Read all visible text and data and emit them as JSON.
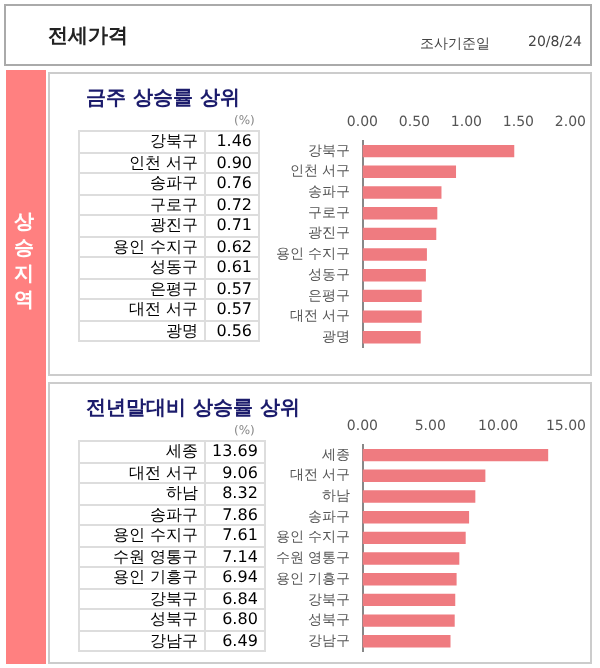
{
  "chart_data": [
    {
      "type": "bar",
      "orientation": "horizontal",
      "title": "금주 상승률 상위",
      "annotations": [
        "전세가격",
        "조사기준일",
        "20/8/24",
        "상승지역",
        "(%)"
      ],
      "categories": [
        "강북구",
        "인천 서구",
        "송파구",
        "구로구",
        "광진구",
        "용인 수지구",
        "성동구",
        "은평구",
        "대전 서구",
        "광명"
      ],
      "values": [
        1.46,
        0.9,
        0.76,
        0.72,
        0.71,
        0.62,
        0.61,
        0.57,
        0.57,
        0.56
      ],
      "value_labels": [
        "1.46",
        "0.90",
        "0.76",
        "0.72",
        "0.71",
        "0.62",
        "0.61",
        "0.57",
        "0.57",
        "0.56"
      ],
      "color": "#ef7b80",
      "xlim": [
        0,
        2
      ],
      "xticks": [
        {
          "value": 0,
          "label": "0.00"
        },
        {
          "value": 0.5,
          "label": "0.50"
        },
        {
          "value": 1,
          "label": "1.00"
        },
        {
          "value": 1.5,
          "label": "1.50"
        },
        {
          "value": 2,
          "label": "2.00"
        }
      ]
    },
    {
      "type": "bar",
      "orientation": "horizontal",
      "title": "전년말대비 상승률 상위",
      "annotations": [
        "(%)"
      ],
      "categories": [
        "세종",
        "대전 서구",
        "하남",
        "송파구",
        "용인 수지구",
        "수원 영통구",
        "용인 기흥구",
        "강북구",
        "성북구",
        "강남구"
      ],
      "values": [
        13.69,
        9.06,
        8.32,
        7.86,
        7.61,
        7.14,
        6.94,
        6.84,
        6.8,
        6.49
      ],
      "value_labels": [
        "13.69",
        "9.06",
        "8.32",
        "7.86",
        "7.61",
        "7.14",
        "6.94",
        "6.84",
        "6.80",
        "6.49"
      ],
      "color": "#ef7b80",
      "xlim": [
        0,
        15
      ],
      "xticks": [
        {
          "value": 0,
          "label": "0.00"
        },
        {
          "value": 5,
          "label": "5.00"
        },
        {
          "value": 10,
          "label": "10.00"
        },
        {
          "value": 15,
          "label": "15.00"
        }
      ]
    }
  ]
}
